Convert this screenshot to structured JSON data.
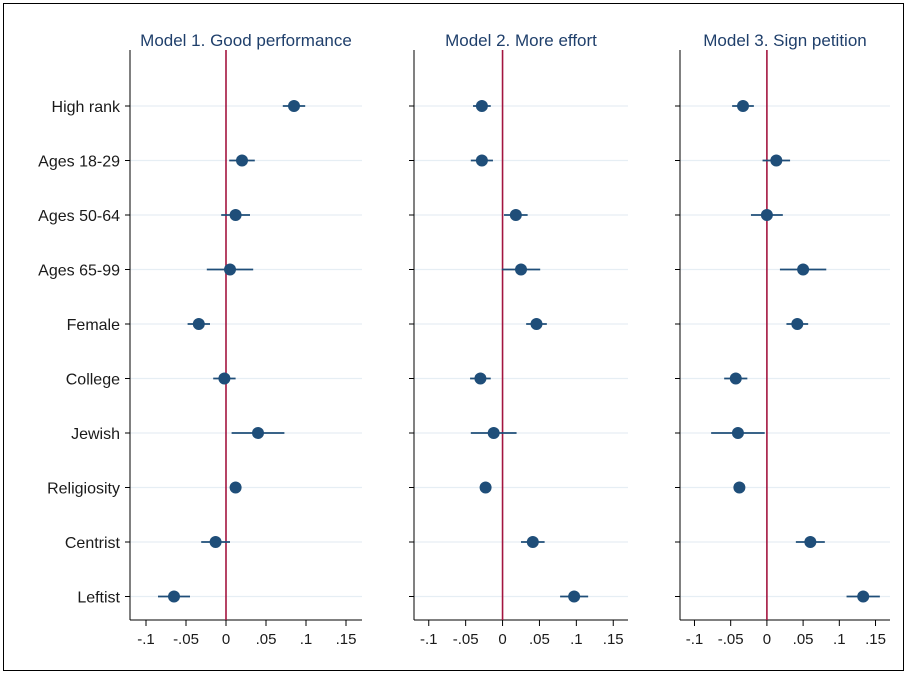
{
  "chart_data": {
    "type": "scatter",
    "plot_style": "coefficient-plot",
    "categories": [
      "High rank",
      "Ages 18-29",
      "Ages 50-64",
      "Ages 65-99",
      "Female",
      "College",
      "Jewish",
      "Religiosity",
      "Centrist",
      "Leftist"
    ],
    "xlim": [
      -0.12,
      0.17
    ],
    "x_ticks": [
      -0.1,
      -0.05,
      0,
      0.05,
      0.1,
      0.15
    ],
    "x_tick_labels": [
      "-.1",
      "-.05",
      "0",
      ".05",
      ".1",
      ".15"
    ],
    "reference_line": 0,
    "grid": true,
    "colors": {
      "point": "#1f4e79",
      "interval": "#1f4e79",
      "reference_line": "#a3153f",
      "grid": "#e6eef4",
      "axis": "#000000",
      "frame": "#000000"
    },
    "panels": [
      {
        "title": "Model 1. Good performance",
        "estimates": [
          0.085,
          0.02,
          0.012,
          0.005,
          -0.034,
          -0.002,
          0.04,
          0.012,
          -0.013,
          -0.065
        ],
        "lower": [
          0.071,
          0.004,
          -0.006,
          -0.024,
          -0.048,
          -0.016,
          0.007,
          0.005,
          -0.031,
          -0.085
        ],
        "upper": [
          0.099,
          0.036,
          0.03,
          0.034,
          -0.02,
          0.012,
          0.073,
          0.019,
          0.005,
          -0.045
        ]
      },
      {
        "title": "Model 2. More effort",
        "estimates": [
          -0.028,
          -0.028,
          0.018,
          0.025,
          0.046,
          -0.03,
          -0.012,
          -0.023,
          0.041,
          0.097
        ],
        "lower": [
          -0.04,
          -0.043,
          0.002,
          -0.001,
          0.032,
          -0.044,
          -0.043,
          -0.03,
          0.025,
          0.078
        ],
        "upper": [
          -0.016,
          -0.013,
          0.034,
          0.051,
          0.06,
          -0.016,
          0.019,
          -0.016,
          0.057,
          0.116
        ]
      },
      {
        "title": "Model 3. Sign petition",
        "estimates": [
          -0.033,
          0.013,
          0.0,
          0.05,
          0.042,
          -0.043,
          -0.04,
          -0.038,
          0.06,
          0.133
        ],
        "lower": [
          -0.048,
          -0.006,
          -0.022,
          0.018,
          0.027,
          -0.059,
          -0.077,
          -0.045,
          0.04,
          0.11
        ],
        "upper": [
          -0.018,
          0.032,
          0.022,
          0.082,
          0.057,
          -0.027,
          -0.003,
          -0.031,
          0.08,
          0.156
        ]
      }
    ]
  }
}
